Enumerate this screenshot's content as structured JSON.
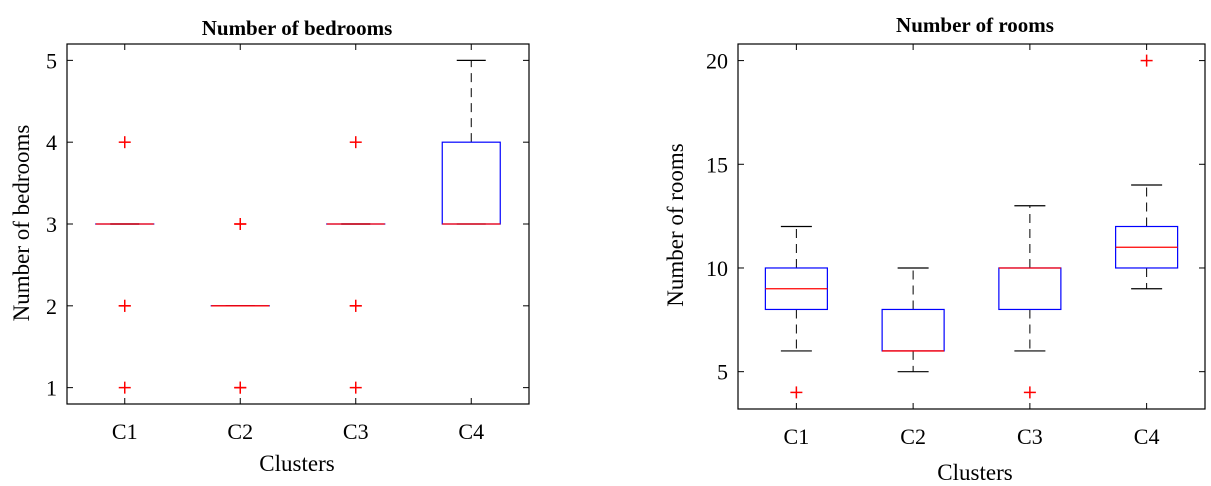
{
  "chart_data": [
    {
      "type": "box",
      "title": "Number of bedrooms",
      "xlabel": "Clusters",
      "ylabel": "Number of bedrooms",
      "categories": [
        "C1",
        "C2",
        "C3",
        "C4"
      ],
      "ylim": [
        0.8,
        5.2
      ],
      "yticks": [
        1,
        2,
        3,
        4,
        5
      ],
      "grid": false,
      "boxes": [
        {
          "category": "C1",
          "whisker_low": 3,
          "q1": 3,
          "median": 3,
          "q3": 3,
          "whisker_high": 3,
          "outliers": [
            1,
            2,
            2,
            4
          ]
        },
        {
          "category": "C2",
          "whisker_low": 2,
          "q1": 2,
          "median": 2,
          "q3": 2,
          "whisker_high": 2,
          "outliers": [
            1,
            1,
            3,
            3
          ]
        },
        {
          "category": "C3",
          "whisker_low": 3,
          "q1": 3,
          "median": 3,
          "q3": 3,
          "whisker_high": 3,
          "outliers": [
            1,
            2,
            2,
            4
          ]
        },
        {
          "category": "C4",
          "whisker_low": 3,
          "q1": 3,
          "median": 3,
          "q3": 4,
          "whisker_high": 5,
          "outliers": []
        }
      ]
    },
    {
      "type": "box",
      "title": "Number of rooms",
      "xlabel": "Clusters",
      "ylabel": "Number of rooms",
      "categories": [
        "C1",
        "C2",
        "C3",
        "C4"
      ],
      "ylim": [
        3.2,
        20.8
      ],
      "yticks": [
        5,
        10,
        15,
        20
      ],
      "grid": false,
      "boxes": [
        {
          "category": "C1",
          "whisker_low": 6,
          "q1": 8,
          "median": 9,
          "q3": 10,
          "whisker_high": 12,
          "outliers": [
            4
          ]
        },
        {
          "category": "C2",
          "whisker_low": 5,
          "q1": 6,
          "median": 6,
          "q3": 8,
          "whisker_high": 10,
          "outliers": []
        },
        {
          "category": "C3",
          "whisker_low": 6,
          "q1": 8,
          "median": 10,
          "q3": 10,
          "whisker_high": 13,
          "outliers": [
            4
          ]
        },
        {
          "category": "C4",
          "whisker_low": 9,
          "q1": 10,
          "median": 11,
          "q3": 12,
          "whisker_high": 14,
          "outliers": [
            20
          ]
        }
      ]
    }
  ],
  "colors": {
    "box": "#0000ff",
    "median": "#ff0000",
    "outlier": "#ff0000",
    "whisker": "#000000"
  }
}
